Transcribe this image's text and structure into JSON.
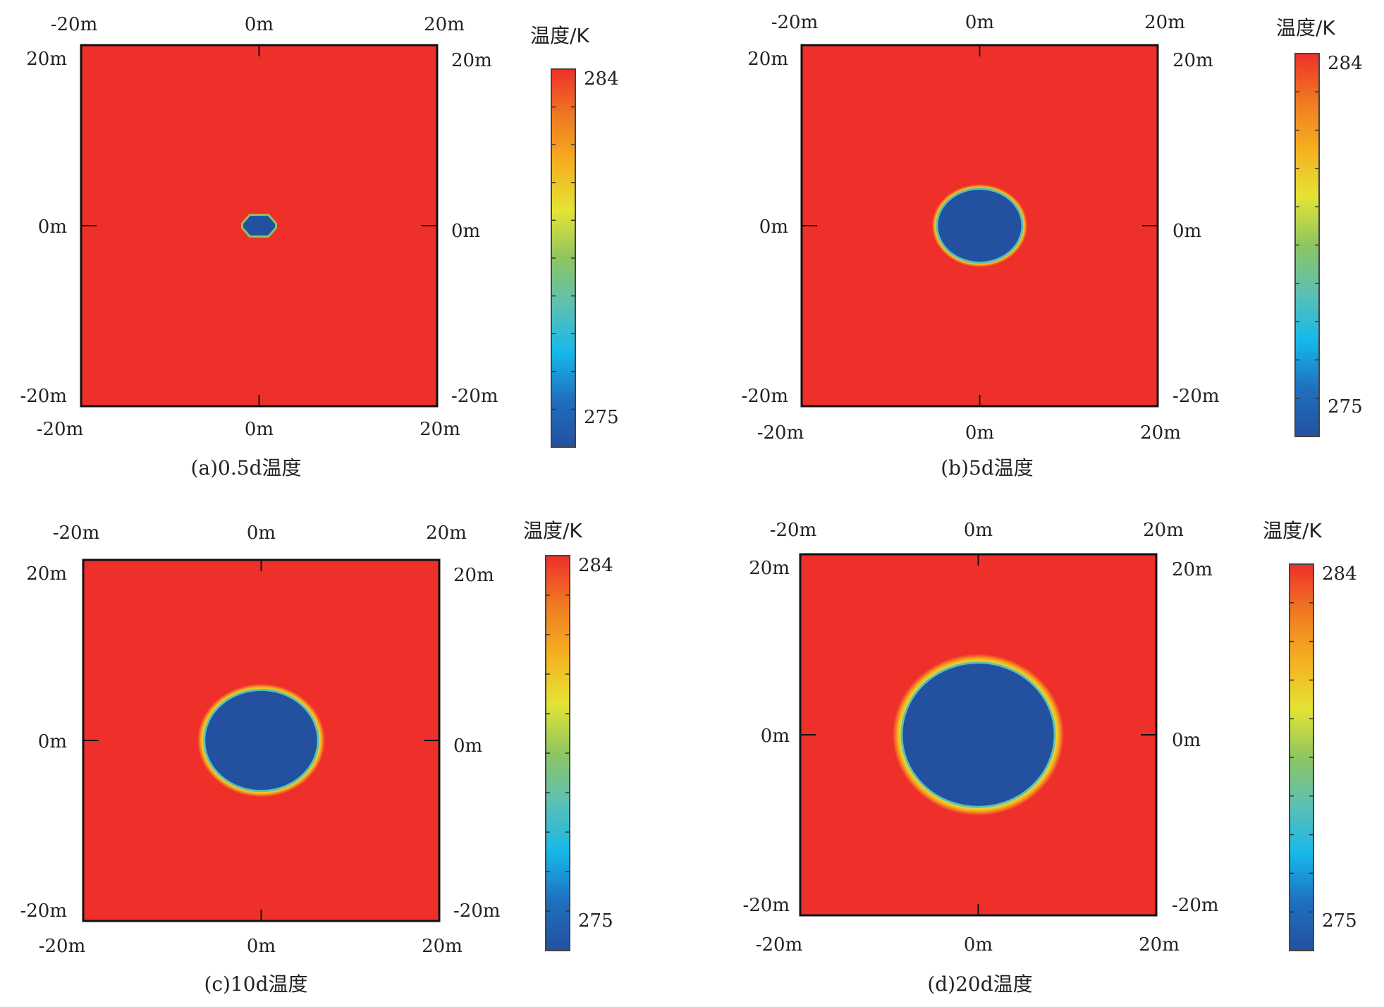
{
  "chart_data": [
    {
      "type": "heatmap",
      "caption": "(a)0.5d温度",
      "top_tick_labels": [
        "-20m",
        "0m",
        "20m"
      ],
      "bottom_tick_labels": [
        "-20m",
        "0m",
        "20m"
      ],
      "left_tick_labels": [
        "20m",
        "0m",
        "-20m"
      ],
      "right_tick_labels": [
        "20m",
        "0m",
        "-20m"
      ],
      "xlim": [
        -20,
        20
      ],
      "ylim": [
        -20,
        20
      ],
      "frozen_region": {
        "center": [
          0,
          0
        ],
        "radius_x": 1.9,
        "radius_y": 1.2,
        "shape": "octagon"
      },
      "colorbar": {
        "title": "温度/K",
        "max_label": "284",
        "min_label": "275",
        "range": [
          275,
          284
        ]
      }
    },
    {
      "type": "heatmap",
      "caption": "(b)5d温度",
      "top_tick_labels": [
        "-20m",
        "0m",
        "20m"
      ],
      "bottom_tick_labels": [
        "-20m",
        "0m",
        "20m"
      ],
      "left_tick_labels": [
        "20m",
        "0m",
        "-20m"
      ],
      "right_tick_labels": [
        "20m",
        "0m",
        "-20m"
      ],
      "xlim": [
        -20,
        20
      ],
      "ylim": [
        -20,
        20
      ],
      "frozen_region": {
        "center": [
          0,
          0
        ],
        "radius_x": 4.8,
        "radius_y": 4.1,
        "shape": "ellipse"
      },
      "colorbar": {
        "title": "温度/K",
        "max_label": "284",
        "min_label": "275",
        "range": [
          275,
          284
        ]
      }
    },
    {
      "type": "heatmap",
      "caption": "(c)10d温度",
      "top_tick_labels": [
        "-20m",
        "0m",
        "20m"
      ],
      "bottom_tick_labels": [
        "-20m",
        "0m",
        "20m"
      ],
      "left_tick_labels": [
        "20m",
        "0m",
        "-20m"
      ],
      "right_tick_labels": [
        "20m",
        "0m",
        "-20m"
      ],
      "xlim": [
        -20,
        20
      ],
      "ylim": [
        -20,
        20
      ],
      "frozen_region": {
        "center": [
          0,
          0
        ],
        "radius_x": 6.4,
        "radius_y": 5.6,
        "shape": "ellipse"
      },
      "colorbar": {
        "title": "温度/K",
        "max_label": "284",
        "min_label": "275",
        "range": [
          275,
          284
        ]
      }
    },
    {
      "type": "heatmap",
      "caption": "(d)20d温度",
      "top_tick_labels": [
        "-20m",
        "0m",
        "20m"
      ],
      "bottom_tick_labels": [
        "-20m",
        "0m",
        "20m"
      ],
      "left_tick_labels": [
        "20m",
        "0m",
        "-20m"
      ],
      "right_tick_labels": [
        "20m",
        "0m",
        "-20m"
      ],
      "xlim": [
        -20,
        20
      ],
      "ylim": [
        -20,
        20
      ],
      "frozen_region": {
        "center": [
          0,
          0
        ],
        "radius_x": 8.6,
        "radius_y": 8.0,
        "shape": "ellipse"
      },
      "colorbar": {
        "title": "温度/K",
        "max_label": "284",
        "min_label": "275",
        "range": [
          275,
          284
        ]
      }
    }
  ],
  "colors": {
    "warm": "#ee2f2a",
    "cold": "#2351a0",
    "ramp": [
      "#2351a0",
      "#1f6fbf",
      "#16b8ea",
      "#5cc0b4",
      "#8ec560",
      "#e4e434",
      "#f5b020",
      "#f07a22",
      "#ee2f2a"
    ]
  }
}
